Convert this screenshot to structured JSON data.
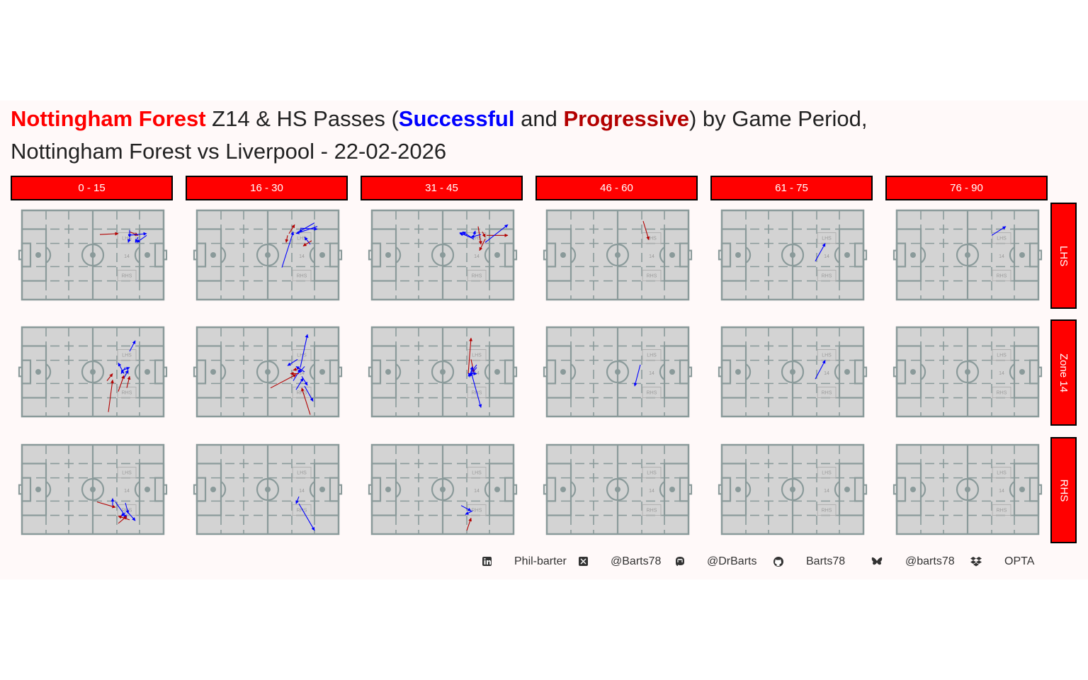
{
  "title": {
    "team": "Nottingham Forest",
    "part1": " Z14 & HS Passes (",
    "successful": "Successful",
    "and": " and ",
    "progressive": "Progressive",
    "part2": ") by Game Period,",
    "subtitle": "Nottingham Forest vs Liverpool - 22-02-2026"
  },
  "colors": {
    "team": "#ff0000",
    "successful": "#0000ff",
    "progressive": "#b30000",
    "strip": "#ff0000",
    "pitch": "#d3d3d3",
    "lines": "#8a9a9a"
  },
  "pitch_labels": {
    "lhs": "LHS",
    "z14": "14",
    "rhs": "RHS"
  },
  "footer": [
    {
      "icon": "linkedin-icon",
      "text": "Phil-barter"
    },
    {
      "icon": "x-twitter-icon",
      "text": "@Barts78"
    },
    {
      "icon": "mastodon-icon",
      "text": "@DrBarts"
    },
    {
      "icon": "github-icon",
      "text": "Barts78"
    },
    {
      "icon": "bluesky-icon",
      "text": "@barts78"
    },
    {
      "icon": "dropbox-icon",
      "text": "OPTA"
    }
  ],
  "chart_data": {
    "type": "scatter",
    "columns": [
      "0 - 15",
      "16 - 30",
      "31 - 45",
      "46 - 60",
      "61 - 75",
      "76 - 90"
    ],
    "rows": [
      "LHS",
      "Zone 14",
      "RHS"
    ],
    "x_range": [
      0,
      100
    ],
    "y_range": [
      0,
      100
    ],
    "arrow_fields": [
      "x",
      "y",
      "end_x",
      "end_y",
      "type"
    ],
    "passes": [
      [
        [
          [
            55,
            27,
            68,
            26,
            "p"
          ],
          [
            76,
            24,
            82,
            28,
            "p"
          ],
          [
            76,
            22,
            76,
            30,
            "s"
          ],
          [
            76,
            31,
            75,
            36,
            "s"
          ],
          [
            82,
            30,
            80,
            36,
            "s"
          ],
          [
            88,
            28,
            81,
            36,
            "s"
          ],
          [
            75,
            28,
            88,
            26,
            "s"
          ]
        ],
        [
          [
            65,
            26,
            69,
            16,
            "p"
          ],
          [
            64,
            28,
            63,
            36,
            "p"
          ],
          [
            60,
            64,
            68,
            24,
            "s"
          ],
          [
            73,
            20,
            85,
            21,
            "s"
          ],
          [
            83,
            14,
            72,
            24,
            "s"
          ],
          [
            85,
            18,
            70,
            26,
            "s"
          ],
          [
            80,
            38,
            76,
            30,
            "s"
          ],
          [
            81,
            34,
            75,
            40,
            "p"
          ]
        ],
        [
          [
            75,
            18,
            77,
            38,
            "p"
          ],
          [
            78,
            24,
            80,
            30,
            "p"
          ],
          [
            81,
            28,
            96,
            28,
            "p"
          ],
          [
            67,
            28,
            62,
            26,
            "s"
          ],
          [
            72,
            32,
            62,
            25,
            "s"
          ],
          [
            80,
            36,
            96,
            16,
            "s"
          ],
          [
            77,
            27,
            70,
            30,
            "s"
          ],
          [
            72,
            28,
            73,
            23,
            "s"
          ],
          [
            70,
            30,
            64,
            24,
            "s"
          ],
          [
            80,
            32,
            76,
            45,
            "p"
          ]
        ],
        [
          [
            68,
            12,
            72,
            33,
            "p"
          ]
        ],
        [
          [
            66,
            57,
            73,
            37,
            "s"
          ]
        ],
        [
          [
            67,
            28,
            77,
            18,
            "s"
          ]
        ]
      ],
      [
        [
          [
            76,
            27,
            80,
            15,
            "s"
          ],
          [
            70,
            49,
            76,
            45,
            "s"
          ],
          [
            72,
            57,
            75,
            48,
            "s"
          ],
          [
            68,
            72,
            72,
            54,
            "p"
          ],
          [
            60,
            60,
            64,
            52,
            "p"
          ],
          [
            74,
            68,
            76,
            55,
            "p"
          ],
          [
            73,
            45,
            70,
            52,
            "s"
          ],
          [
            72,
            52,
            68,
            40,
            "s"
          ],
          [
            61,
            95,
            64,
            59,
            "p"
          ]
        ],
        [
          [
            73,
            45,
            78,
            8,
            "s"
          ],
          [
            68,
            60,
            73,
            47,
            "s"
          ],
          [
            71,
            36,
            64,
            43,
            "s"
          ],
          [
            73,
            46,
            68,
            48,
            "p"
          ],
          [
            72,
            52,
            66,
            52,
            "p"
          ],
          [
            76,
            50,
            70,
            44,
            "s"
          ],
          [
            76,
            44,
            72,
            51,
            "s"
          ],
          [
            74,
            55,
            78,
            65,
            "s"
          ],
          [
            76,
            66,
            82,
            83,
            "s"
          ],
          [
            70,
            70,
            75,
            57,
            "s"
          ],
          [
            80,
            98,
            74,
            68,
            "p"
          ],
          [
            52,
            68,
            70,
            53,
            "p"
          ]
        ],
        [
          [
            68,
            52,
            70,
            12,
            "p"
          ],
          [
            70,
            36,
            72,
            51,
            "p"
          ],
          [
            70,
            50,
            77,
            90,
            "s"
          ],
          [
            74,
            45,
            69,
            55,
            "s"
          ],
          [
            69,
            56,
            71,
            44,
            "s"
          ],
          [
            68,
            52,
            74,
            52,
            "s"
          ],
          [
            74,
            42,
            68,
            55,
            "s"
          ]
        ],
        [
          [
            66,
            42,
            62,
            66,
            "s"
          ]
        ],
        [
          [
            66,
            58,
            73,
            37,
            "s"
          ]
        ],
        []
      ],
      [
        [
          [
            53,
            64,
            66,
            70,
            "p"
          ],
          [
            64,
            68,
            64,
            60,
            "s"
          ],
          [
            66,
            64,
            74,
            82,
            "s"
          ],
          [
            73,
            65,
            75,
            77,
            "s"
          ],
          [
            73,
            76,
            70,
            80,
            "s"
          ],
          [
            76,
            84,
            68,
            80,
            "p"
          ],
          [
            75,
            76,
            80,
            85,
            "s"
          ],
          [
            68,
            88,
            74,
            80,
            "p"
          ]
        ],
        [
          [
            72,
            58,
            70,
            66,
            "s"
          ],
          [
            72,
            66,
            83,
            96,
            "s"
          ]
        ],
        [
          [
            63,
            68,
            70,
            74,
            "s"
          ],
          [
            71,
            74,
            66,
            78,
            "s"
          ],
          [
            67,
            96,
            70,
            82,
            "p"
          ]
        ],
        [],
        [],
        []
      ]
    ]
  }
}
